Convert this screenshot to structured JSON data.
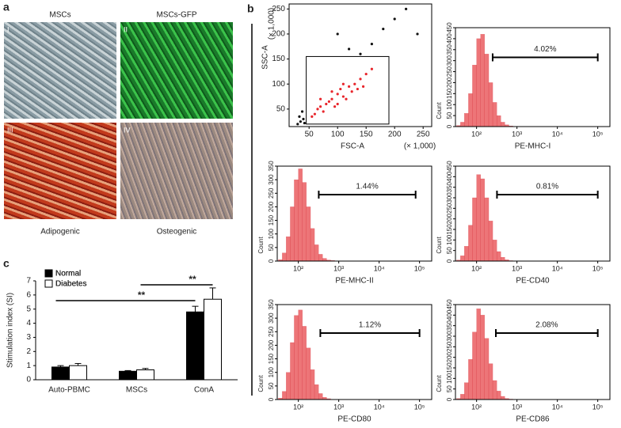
{
  "panel_a": {
    "letter": "a",
    "top_titles": [
      "MSCs",
      "MSCs-GFP"
    ],
    "bottom_titles": [
      "Adipogenic",
      "Osteogenic"
    ],
    "numerals": [
      "I",
      "II",
      "III",
      "IV"
    ]
  },
  "panel_b": {
    "letter": "b"
  },
  "panel_c": {
    "letter": "c"
  },
  "chart_data": [
    {
      "type": "scatter",
      "xlabel": "FSC-A",
      "ylabel": "SSC-A",
      "xunit": "(× 1,000)",
      "yunit": "(× 1,000)",
      "xlim": [
        15,
        265
      ],
      "ylim": [
        15,
        260
      ],
      "xticks": [
        50,
        100,
        150,
        200,
        250
      ],
      "yticks": [
        50,
        100,
        150,
        200,
        250
      ],
      "gate": {
        "x": [
          45,
          190
        ],
        "y": [
          20,
          155
        ]
      },
      "series": [
        {
          "color": "#e8262c",
          "x": [
            60,
            70,
            80,
            90,
            100,
            110,
            120,
            95,
            75,
            130,
            140,
            150,
            85,
            105,
            115,
            65,
            125,
            160,
            100,
            90,
            135,
            55,
            70,
            110,
            145
          ],
          "values": [
            40,
            55,
            60,
            70,
            80,
            75,
            95,
            55,
            45,
            100,
            110,
            120,
            65,
            90,
            70,
            50,
            85,
            130,
            60,
            85,
            90,
            35,
            70,
            100,
            95
          ]
        },
        {
          "color": "#111111",
          "x": [
            30,
            35,
            40,
            38,
            42,
            33,
            100,
            160,
            200,
            140,
            220,
            180,
            120,
            240
          ],
          "values": [
            20,
            25,
            30,
            45,
            22,
            35,
            200,
            180,
            230,
            160,
            250,
            210,
            170,
            200
          ]
        }
      ]
    },
    {
      "type": "histogram",
      "xlabel": "PE-MHC-I",
      "ylabel": "Count",
      "xscale": "log",
      "xlim": [
        30,
        200000
      ],
      "xticks": [
        {
          "value": 100,
          "label": "10²"
        },
        {
          "value": 1000,
          "label": "10³"
        },
        {
          "value": 10000,
          "label": "10⁴"
        },
        {
          "value": 100000,
          "label": "10⁵"
        }
      ],
      "ylim": [
        0,
        450
      ],
      "yticks": [
        0,
        50,
        100,
        150,
        200,
        250,
        300,
        350,
        400,
        450
      ],
      "color": "#e8474c",
      "bins": [
        32,
        40,
        50,
        63,
        79,
        100,
        126,
        158,
        200,
        251,
        316,
        398,
        501,
        631,
        794,
        1000
      ],
      "counts": [
        5,
        20,
        60,
        150,
        280,
        400,
        420,
        330,
        200,
        110,
        50,
        20,
        8,
        3,
        1
      ],
      "gate": [
        250,
        100000
      ],
      "gate_label": "4.02%"
    },
    {
      "type": "histogram",
      "xlabel": "PE-MHC-II",
      "ylabel": "Count",
      "xscale": "log",
      "xlim": [
        30,
        200000
      ],
      "xticks": [
        {
          "value": 100,
          "label": "10²"
        },
        {
          "value": 1000,
          "label": "10³"
        },
        {
          "value": 10000,
          "label": "10⁴"
        },
        {
          "value": 100000,
          "label": "10⁵"
        }
      ],
      "ylim": [
        0,
        350
      ],
      "yticks": [
        0,
        50,
        100,
        150,
        200,
        250,
        300,
        350
      ],
      "color": "#e8474c",
      "bins": [
        32,
        40,
        50,
        63,
        79,
        100,
        126,
        158,
        200,
        251,
        316,
        398,
        501,
        631,
        794,
        1000
      ],
      "counts": [
        5,
        30,
        90,
        200,
        300,
        340,
        290,
        200,
        120,
        60,
        25,
        10,
        4,
        2,
        1
      ],
      "gate": [
        320,
        80000
      ],
      "gate_label": "1.44%"
    },
    {
      "type": "histogram",
      "xlabel": "PE-CD40",
      "ylabel": "Count",
      "xscale": "log",
      "xlim": [
        30,
        200000
      ],
      "xticks": [
        {
          "value": 100,
          "label": "10²"
        },
        {
          "value": 1000,
          "label": "10³"
        },
        {
          "value": 10000,
          "label": "10⁴"
        },
        {
          "value": 100000,
          "label": "10⁵"
        }
      ],
      "ylim": [
        0,
        450
      ],
      "yticks": [
        0,
        50,
        100,
        150,
        200,
        250,
        300,
        350,
        400,
        450
      ],
      "color": "#e8474c",
      "bins": [
        32,
        40,
        50,
        63,
        79,
        100,
        126,
        158,
        200,
        251,
        316,
        398,
        501,
        631,
        794,
        1000
      ],
      "counts": [
        5,
        25,
        70,
        170,
        300,
        410,
        390,
        300,
        190,
        100,
        45,
        18,
        6,
        2,
        1
      ],
      "gate": [
        320,
        100000
      ],
      "gate_label": "0.81%"
    },
    {
      "type": "histogram",
      "xlabel": "PE-CD80",
      "ylabel": "Count",
      "xscale": "log",
      "xlim": [
        30,
        200000
      ],
      "xticks": [
        {
          "value": 100,
          "label": "10²"
        },
        {
          "value": 1000,
          "label": "10³"
        },
        {
          "value": 10000,
          "label": "10⁴"
        },
        {
          "value": 100000,
          "label": "10⁵"
        }
      ],
      "ylim": [
        0,
        350
      ],
      "yticks": [
        0,
        50,
        100,
        150,
        200,
        250,
        300,
        350
      ],
      "color": "#e8474c",
      "bins": [
        32,
        40,
        50,
        63,
        79,
        100,
        126,
        158,
        200,
        251,
        316,
        398,
        501,
        631,
        794,
        1000
      ],
      "counts": [
        5,
        30,
        100,
        210,
        310,
        330,
        270,
        190,
        110,
        55,
        22,
        8,
        3,
        1,
        0
      ],
      "gate": [
        350,
        100000
      ],
      "gate_label": "1.12%"
    },
    {
      "type": "histogram",
      "xlabel": "PE-CD86",
      "ylabel": "Count",
      "xscale": "log",
      "xlim": [
        30,
        200000
      ],
      "xticks": [
        {
          "value": 100,
          "label": "10²"
        },
        {
          "value": 1000,
          "label": "10³"
        },
        {
          "value": 10000,
          "label": "10⁴"
        },
        {
          "value": 100000,
          "label": "10⁵"
        }
      ],
      "ylim": [
        0,
        450
      ],
      "yticks": [
        0,
        50,
        100,
        150,
        200,
        250,
        300,
        350,
        400,
        450
      ],
      "color": "#e8474c",
      "bins": [
        32,
        40,
        50,
        63,
        79,
        100,
        126,
        158,
        200,
        251,
        316,
        398,
        501,
        631,
        794,
        1000
      ],
      "counts": [
        5,
        25,
        80,
        190,
        320,
        430,
        400,
        290,
        170,
        90,
        40,
        15,
        5,
        2,
        1
      ],
      "gate": [
        300,
        100000
      ],
      "gate_label": "2.08%"
    },
    {
      "type": "bar",
      "ylabel": "Stimulation index (SI)",
      "categories": [
        "Auto-PBMC",
        "MSCs",
        "ConA"
      ],
      "ylim": [
        0,
        7
      ],
      "yticks": [
        0,
        1,
        2,
        3,
        4,
        5,
        6,
        7
      ],
      "legend": "top-left",
      "series": [
        {
          "name": "Normal",
          "color": "#000000",
          "values": [
            0.9,
            0.6,
            4.8
          ],
          "errors": [
            0.1,
            0.05,
            0.4
          ]
        },
        {
          "name": "Diabetes",
          "color": "#ffffff",
          "values": [
            1.0,
            0.7,
            5.7
          ],
          "errors": [
            0.15,
            0.1,
            0.8
          ]
        }
      ],
      "annotations": [
        "**",
        "**"
      ]
    }
  ]
}
